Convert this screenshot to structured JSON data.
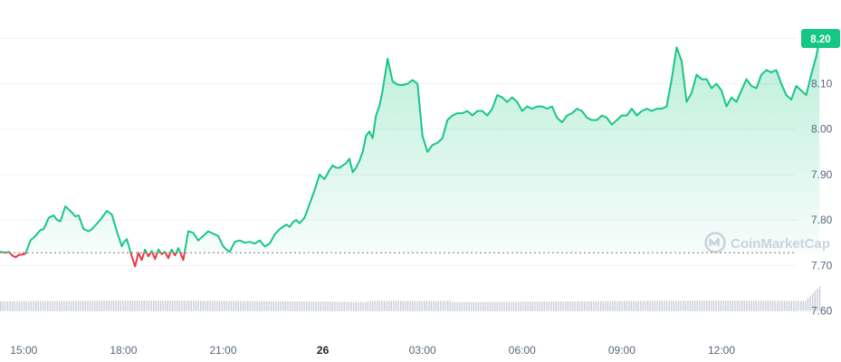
{
  "chart_data": {
    "type": "line",
    "watermark": "CoinMarketCap",
    "current_price_label": "8.20",
    "y_ticks": [
      "7.60",
      "7.70",
      "7.80",
      "7.90",
      "8.00",
      "8.10"
    ],
    "ylim": [
      7.56,
      8.26
    ],
    "x_ticks": [
      {
        "label": "15:00",
        "x": 0,
        "bold": false
      },
      {
        "label": "18:00",
        "x": 3,
        "bold": false
      },
      {
        "label": "21:00",
        "x": 6,
        "bold": false
      },
      {
        "label": "26",
        "x": 9,
        "bold": true
      },
      {
        "label": "03:00",
        "x": 12,
        "bold": false
      },
      {
        "label": "06:00",
        "x": 15,
        "bold": false
      },
      {
        "label": "09:00",
        "x": 18,
        "bold": false
      },
      {
        "label": "12:00",
        "x": 21,
        "bold": false
      }
    ],
    "xlim": [
      -0.72,
      24.2
    ],
    "reference_price": 7.728,
    "colors": {
      "up": "#16c784",
      "down": "#ea3943",
      "reference": "#7a7a7a",
      "volume": "#c8cdd6"
    },
    "series": [
      {
        "x": [
          -0.72,
          -0.55,
          -0.45,
          -0.35,
          -0.25,
          -0.15,
          -0.05,
          0.05,
          0.2,
          0.35,
          0.5,
          0.6,
          0.75,
          0.9,
          1.0,
          1.1,
          1.25,
          1.4,
          1.55,
          1.65,
          1.8,
          1.95,
          2.05,
          2.15,
          2.3,
          2.5,
          2.65,
          2.8,
          2.95,
          3.0,
          3.1,
          3.15,
          3.25,
          3.35,
          3.45,
          3.55,
          3.65,
          3.75,
          3.85,
          3.95,
          4.05,
          4.15,
          4.25,
          4.35,
          4.45,
          4.55,
          4.65,
          4.8,
          4.95,
          5.1,
          5.25,
          5.4,
          5.55,
          5.7,
          5.85,
          6.0,
          6.1,
          6.2,
          6.35,
          6.5,
          6.65,
          6.8,
          6.95,
          7.1,
          7.25,
          7.4,
          7.55,
          7.7,
          7.8,
          7.9,
          8.0,
          8.1,
          8.2,
          8.3,
          8.45,
          8.6,
          8.75,
          8.9,
          9.05,
          9.2,
          9.3,
          9.4,
          9.5,
          9.6,
          9.7,
          9.8,
          9.9,
          10.0,
          10.1,
          10.2,
          10.3,
          10.4,
          10.5,
          10.6,
          10.7,
          10.8,
          10.95,
          11.1,
          11.25,
          11.4,
          11.55,
          11.7,
          11.85,
          12.0,
          12.15,
          12.3,
          12.45,
          12.6,
          12.75,
          12.9,
          13.05,
          13.2,
          13.35,
          13.5,
          13.65,
          13.8,
          13.95,
          14.1,
          14.25,
          14.4,
          14.55,
          14.7,
          14.85,
          15.0,
          15.15,
          15.3,
          15.45,
          15.6,
          15.75,
          15.9,
          16.05,
          16.2,
          16.35,
          16.5,
          16.65,
          16.8,
          16.95,
          17.1,
          17.25,
          17.4,
          17.55,
          17.7,
          17.85,
          18.0,
          18.15,
          18.3,
          18.45,
          18.6,
          18.75,
          18.9,
          19.05,
          19.2,
          19.35,
          19.5,
          19.65,
          19.8,
          19.95,
          20.1,
          20.25,
          20.4,
          20.55,
          20.7,
          20.85,
          21.0,
          21.15,
          21.3,
          21.45,
          21.6,
          21.75,
          21.9,
          22.05,
          22.2,
          22.35,
          22.5,
          22.65,
          22.8,
          22.95,
          23.1,
          23.25,
          23.4,
          23.55,
          23.7,
          23.85,
          23.95
        ],
        "y": [
          7.73,
          7.728,
          7.73,
          7.722,
          7.718,
          7.723,
          7.724,
          7.726,
          7.755,
          7.765,
          7.778,
          7.78,
          7.805,
          7.81,
          7.8,
          7.797,
          7.83,
          7.82,
          7.808,
          7.81,
          7.78,
          7.775,
          7.78,
          7.788,
          7.8,
          7.82,
          7.812,
          7.775,
          7.742,
          7.75,
          7.758,
          7.745,
          7.72,
          7.698,
          7.728,
          7.712,
          7.735,
          7.72,
          7.732,
          7.714,
          7.735,
          7.725,
          7.73,
          7.716,
          7.735,
          7.722,
          7.738,
          7.712,
          7.775,
          7.772,
          7.755,
          7.765,
          7.775,
          7.77,
          7.765,
          7.742,
          7.735,
          7.73,
          7.752,
          7.755,
          7.75,
          7.752,
          7.748,
          7.755,
          7.742,
          7.748,
          7.768,
          7.78,
          7.785,
          7.79,
          7.785,
          7.795,
          7.8,
          7.793,
          7.805,
          7.835,
          7.865,
          7.9,
          7.89,
          7.91,
          7.92,
          7.915,
          7.915,
          7.92,
          7.925,
          7.935,
          7.905,
          7.915,
          7.93,
          7.95,
          7.985,
          7.995,
          7.98,
          8.03,
          8.05,
          8.085,
          8.155,
          8.105,
          8.098,
          8.097,
          8.1,
          8.108,
          8.1,
          7.985,
          7.95,
          7.965,
          7.97,
          7.98,
          8.02,
          8.03,
          8.035,
          8.035,
          8.04,
          8.03,
          8.04,
          8.04,
          8.03,
          8.045,
          8.075,
          8.07,
          8.06,
          8.07,
          8.06,
          8.04,
          8.05,
          8.045,
          8.05,
          8.05,
          8.045,
          8.05,
          8.025,
          8.015,
          8.03,
          8.035,
          8.045,
          8.04,
          8.025,
          8.02,
          8.02,
          8.03,
          8.025,
          8.01,
          8.02,
          8.03,
          8.03,
          8.045,
          8.03,
          8.04,
          8.045,
          8.04,
          8.045,
          8.045,
          8.05,
          8.11,
          8.18,
          8.15,
          8.06,
          8.08,
          8.12,
          8.11,
          8.11,
          8.09,
          8.1,
          8.085,
          8.05,
          8.07,
          8.06,
          8.085,
          8.11,
          8.095,
          8.09,
          8.12,
          8.13,
          8.125,
          8.13,
          8.1,
          8.075,
          8.065,
          8.095,
          8.085,
          8.075,
          8.12,
          8.16,
          8.2
        ]
      }
    ]
  }
}
